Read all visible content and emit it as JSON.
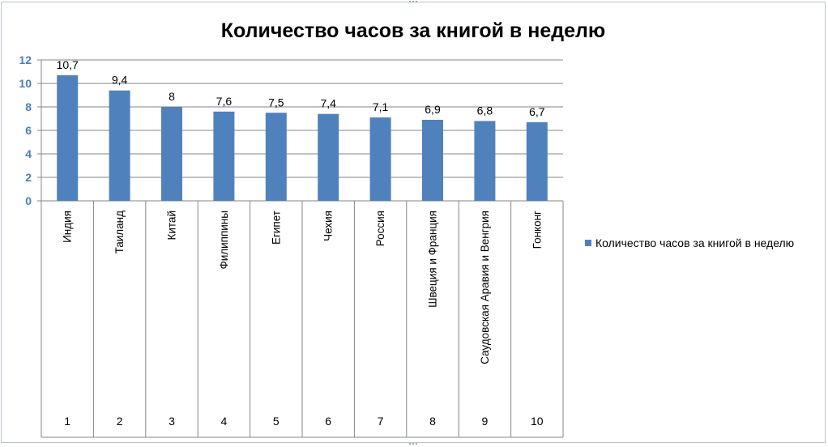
{
  "chart_data": {
    "type": "bar",
    "title": "Количество часов за книгой в неделю",
    "xlabel": "",
    "ylabel": "",
    "ylim": [
      0,
      12
    ],
    "yticks": [
      0,
      2,
      4,
      6,
      8,
      10,
      12
    ],
    "grid": true,
    "legend": "right",
    "series": [
      {
        "name": "Количество часов за книгой в неделю",
        "color": "#4f81bd",
        "values": [
          10.7,
          9.4,
          8,
          7.6,
          7.5,
          7.4,
          7.1,
          6.9,
          6.8,
          6.7
        ],
        "data_labels": [
          "10,7",
          "9,4",
          "8",
          "7,6",
          "7,5",
          "7,4",
          "7,1",
          "6,9",
          "6,8",
          "6,7"
        ]
      }
    ],
    "categories": [
      "Индия",
      "Таиланд",
      "Китай",
      "Филиппины",
      "Египет",
      "Чехия",
      "Россия",
      "Швеция и Франция",
      "Саудовская Аравия и Венгрия",
      "Гонконг"
    ],
    "category_numbers": [
      "1",
      "2",
      "3",
      "4",
      "5",
      "6",
      "7",
      "8",
      "9",
      "10"
    ]
  }
}
